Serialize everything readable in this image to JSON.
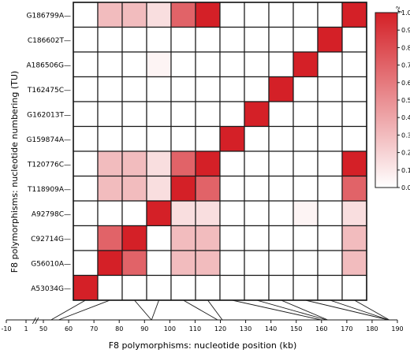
{
  "chart_data": {
    "type": "heatmap",
    "title": "",
    "ylabel": "F8 polymorphisms: nucleotide numbering (TU)",
    "xlabel": "F8 polymorphisms: nucleotide position (kb)",
    "rows": [
      "G186799A",
      "C186602T",
      "A186506G",
      "T162475C",
      "G162013T",
      "G159874A",
      "T120776C",
      "T118909A",
      "A92798C",
      "C92714G",
      "G56010A",
      "A53034G"
    ],
    "columns": [
      "A53034G",
      "G56010A",
      "C92714G",
      "A92798C",
      "T118909A",
      "T120776C",
      "G159874A",
      "G162013T",
      "T162475C",
      "A186506G",
      "C186602T",
      "G186799A"
    ],
    "values": [
      [
        0,
        0.3,
        0.3,
        0.15,
        0.7,
        1.0,
        0,
        0,
        0,
        0,
        0,
        1.0
      ],
      [
        0,
        0,
        0,
        0,
        0,
        0,
        0,
        0,
        0,
        0,
        1.0,
        0
      ],
      [
        0,
        0,
        0,
        0.05,
        0,
        0,
        0,
        0,
        0,
        1.0,
        0,
        0
      ],
      [
        0,
        0,
        0,
        0,
        0,
        0,
        0,
        0,
        1.0,
        0,
        0,
        0
      ],
      [
        0,
        0,
        0,
        0,
        0,
        0,
        0,
        1.0,
        0,
        0,
        0,
        0
      ],
      [
        0,
        0,
        0,
        0,
        0,
        0,
        1.0,
        0,
        0,
        0,
        0,
        0
      ],
      [
        0,
        0.3,
        0.3,
        0.15,
        0.7,
        1.0,
        0,
        0,
        0,
        0,
        0,
        1.0
      ],
      [
        0,
        0.3,
        0.3,
        0.15,
        1.0,
        0.7,
        0,
        0,
        0,
        0,
        0,
        0.7
      ],
      [
        0,
        0,
        0,
        1.0,
        0.15,
        0.15,
        0,
        0,
        0,
        0.05,
        0,
        0.15
      ],
      [
        0,
        0.7,
        1.0,
        0,
        0.3,
        0.3,
        0,
        0,
        0,
        0,
        0,
        0.3
      ],
      [
        0,
        1.0,
        0.7,
        0,
        0.3,
        0.3,
        0,
        0,
        0,
        0,
        0,
        0.3
      ],
      [
        1.0,
        0,
        0,
        0,
        0,
        0,
        0,
        0,
        0,
        0,
        0,
        0
      ]
    ],
    "colorbar": {
      "label": "r²",
      "ticks": [
        "1.0",
        "0.9",
        "0.8",
        "0.7",
        "0.6",
        "0.5",
        "0.4",
        "0.3",
        "0.2",
        "0.1",
        "0.0"
      ],
      "color_min": "#ffffff",
      "color_max": "#d42027"
    },
    "axis": {
      "ticks": [
        "-10",
        "1",
        "50",
        "60",
        "70",
        "80",
        "90",
        "100",
        "110",
        "120",
        "130",
        "140",
        "150",
        "160",
        "170",
        "180",
        "190"
      ],
      "break_marker": "//",
      "snp_positions_kb": [
        53.034,
        56.01,
        92.714,
        92.798,
        118.909,
        120.776,
        159.874,
        162.013,
        162.475,
        186.506,
        186.602,
        186.799
      ]
    },
    "grid": true,
    "legend": "right"
  },
  "colors": {
    "cell_border": "#1a1a1a",
    "accent": "#d42027"
  }
}
